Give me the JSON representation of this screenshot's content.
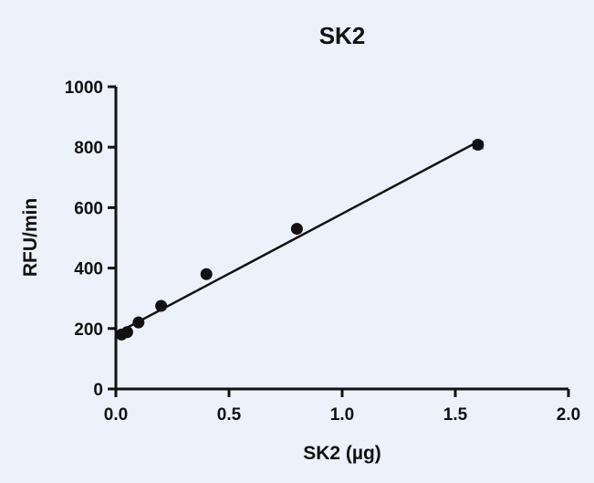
{
  "colors": {
    "background": "#edf1f9",
    "axis": "#111111",
    "points": "#111111",
    "fit_line": "#111111",
    "error_bar": "#3b4fc4"
  },
  "chart_data": {
    "type": "scatter",
    "title": "SK2",
    "xlabel": "SK2 (µg)",
    "ylabel": "RFU/min",
    "xlim": [
      0,
      2.0
    ],
    "ylim": [
      0,
      1000
    ],
    "x_ticks": [
      "0.0",
      "0.5",
      "1.0",
      "1.5",
      "2.0"
    ],
    "x_tick_values": [
      0,
      0.5,
      1.0,
      1.5,
      2.0
    ],
    "y_ticks": [
      "0",
      "200",
      "400",
      "600",
      "800",
      "1000"
    ],
    "y_tick_values": [
      0,
      200,
      400,
      600,
      800,
      1000
    ],
    "grid": false,
    "series": [
      {
        "points": [
          {
            "x": 0.025,
            "y": 180
          },
          {
            "x": 0.05,
            "y": 188
          },
          {
            "x": 0.1,
            "y": 220
          },
          {
            "x": 0.2,
            "y": 275
          },
          {
            "x": 0.4,
            "y": 380
          },
          {
            "x": 0.8,
            "y": 530
          },
          {
            "x": 1.6,
            "y": 808
          }
        ],
        "error_bars": [
          {
            "x": 1.6,
            "low": 796,
            "high": 818
          }
        ]
      }
    ],
    "fit_line": {
      "x": [
        0,
        1.6
      ],
      "y": [
        183,
        818
      ]
    }
  }
}
